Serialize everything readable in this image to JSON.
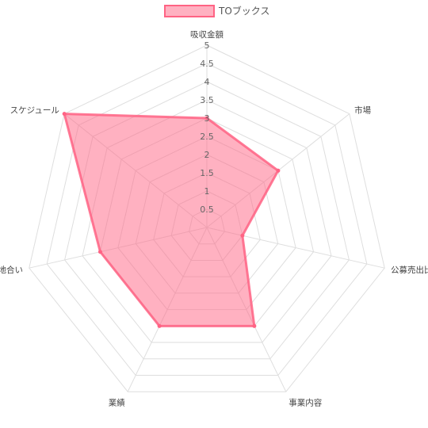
{
  "chart_data": {
    "type": "radar",
    "axes": [
      "吸収金額",
      "市場",
      "公募売出比",
      "事業内容",
      "業績",
      "地合い",
      "スケジュール"
    ],
    "r_ticks": [
      "0.5",
      "1",
      "1.5",
      "2",
      "2.5",
      "3",
      "3.5",
      "4",
      "4.5",
      "5"
    ],
    "r_range": [
      0,
      5
    ],
    "grid": true,
    "legend_position": "top",
    "series": [
      {
        "name": "TOブックス",
        "values": [
          3,
          2.5,
          1,
          3,
          3,
          3,
          5
        ],
        "stroke": "#ff6384",
        "fill": "#ff6384"
      }
    ]
  }
}
